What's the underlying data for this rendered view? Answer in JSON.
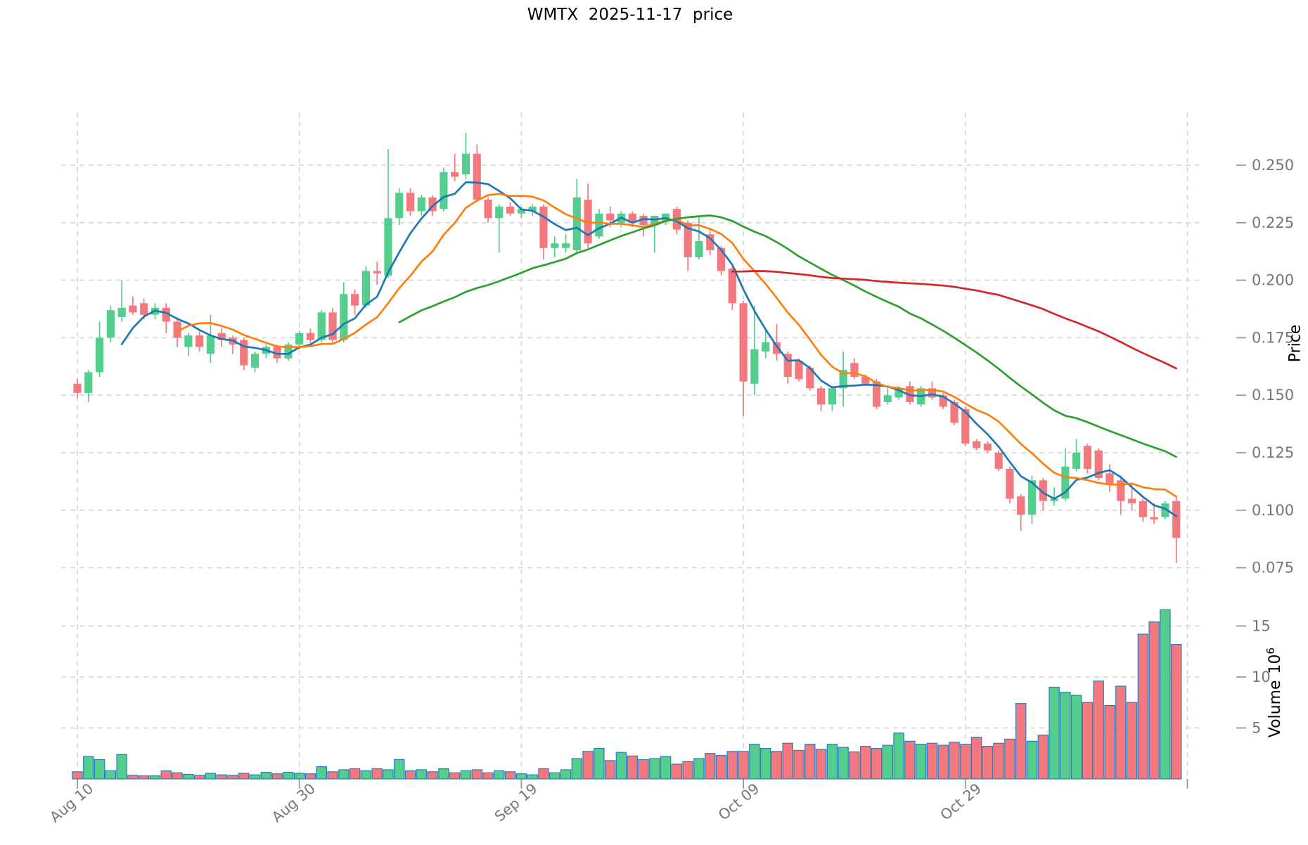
{
  "title": "WMTX  2025-11-17  price",
  "colors": {
    "up": "#54CE8D",
    "down": "#F4797F",
    "volume_edge": "#2B7BBE",
    "grid": "#d9d9d9",
    "tick_text": "#767676",
    "tick_mark": "#9a9a9a"
  },
  "axes": {
    "price": {
      "label": "Price",
      "ticks": [
        "0.250",
        "0.225",
        "0.200",
        "0.175",
        "0.150",
        "0.125",
        "0.100",
        "0.075"
      ]
    },
    "volume": {
      "label": "Volume",
      "exponent": "6",
      "ticks": [
        "15",
        "10",
        "5"
      ]
    },
    "x": {
      "ticks": [
        {
          "index": 0,
          "label": "Aug 10"
        },
        {
          "index": 20,
          "label": "Aug 30"
        },
        {
          "index": 40,
          "label": "Sep 19"
        },
        {
          "index": 60,
          "label": "Oct 09"
        },
        {
          "index": 80,
          "label": "Oct 29"
        },
        {
          "index": 100,
          "label": ""
        }
      ]
    }
  },
  "chart_data": {
    "type": "candlestick",
    "title": "WMTX  2025-11-17  price",
    "x_axis_dates_shown": [
      "Aug 10",
      "Aug 30",
      "Sep 19",
      "Oct 09",
      "Oct 29"
    ],
    "price_axis_range": [
      0.065,
      0.272
    ],
    "volume_axis_range_millions": [
      0,
      17.5
    ],
    "grid": true,
    "legend": false,
    "moving_averages": [
      {
        "window": 5,
        "color": "#1f77b4"
      },
      {
        "window": 10,
        "color": "#ff7f0e"
      },
      {
        "window": 30,
        "color": "#2ca02c"
      },
      {
        "window": 60,
        "color": "#d62728"
      }
    ],
    "dates": [
      "Aug 10",
      "Aug 11",
      "Aug 12",
      "Aug 13",
      "Aug 14",
      "Aug 15",
      "Aug 16",
      "Aug 17",
      "Aug 18",
      "Aug 19",
      "Aug 20",
      "Aug 21",
      "Aug 22",
      "Aug 23",
      "Aug 24",
      "Aug 25",
      "Aug 26",
      "Aug 27",
      "Aug 28",
      "Aug 29",
      "Aug 30",
      "Aug 31",
      "Sep 01",
      "Sep 02",
      "Sep 03",
      "Sep 04",
      "Sep 05",
      "Sep 06",
      "Sep 07",
      "Sep 08",
      "Sep 09",
      "Sep 10",
      "Sep 11",
      "Sep 12",
      "Sep 13",
      "Sep 14",
      "Sep 15",
      "Sep 16",
      "Sep 17",
      "Sep 18",
      "Sep 19",
      "Sep 20",
      "Sep 21",
      "Sep 22",
      "Sep 23",
      "Sep 24",
      "Sep 25",
      "Sep 26",
      "Sep 27",
      "Sep 28",
      "Sep 29",
      "Sep 30",
      "Oct 01",
      "Oct 02",
      "Oct 03",
      "Oct 04",
      "Oct 05",
      "Oct 06",
      "Oct 07",
      "Oct 08",
      "Oct 09",
      "Oct 10",
      "Oct 11",
      "Oct 12",
      "Oct 13",
      "Oct 14",
      "Oct 15",
      "Oct 16",
      "Oct 17",
      "Oct 18",
      "Oct 19",
      "Oct 20",
      "Oct 21",
      "Oct 22",
      "Oct 23",
      "Oct 24",
      "Oct 25",
      "Oct 26",
      "Oct 27",
      "Oct 28",
      "Oct 29",
      "Oct 30",
      "Oct 31",
      "Nov 01",
      "Nov 02",
      "Nov 03",
      "Nov 04",
      "Nov 05",
      "Nov 06",
      "Nov 07",
      "Nov 08",
      "Nov 09",
      "Nov 10",
      "Nov 11",
      "Nov 12",
      "Nov 13",
      "Nov 14",
      "Nov 15",
      "Nov 16",
      "Nov 17"
    ],
    "open": [
      0.155,
      0.151,
      0.16,
      0.175,
      0.184,
      0.189,
      0.19,
      0.185,
      0.188,
      0.182,
      0.171,
      0.176,
      0.168,
      0.177,
      0.175,
      0.174,
      0.162,
      0.168,
      0.171,
      0.166,
      0.172,
      0.177,
      0.174,
      0.186,
      0.174,
      0.194,
      0.189,
      0.204,
      0.202,
      0.227,
      0.238,
      0.23,
      0.236,
      0.231,
      0.247,
      0.246,
      0.255,
      0.235,
      0.227,
      0.232,
      0.229,
      0.23,
      0.232,
      0.214,
      0.214,
      0.213,
      0.235,
      0.219,
      0.229,
      0.225,
      0.229,
      0.228,
      0.224,
      0.226,
      0.231,
      0.225,
      0.21,
      0.22,
      0.214,
      0.205,
      0.19,
      0.155,
      0.169,
      0.173,
      0.168,
      0.165,
      0.162,
      0.153,
      0.146,
      0.153,
      0.164,
      0.158,
      0.156,
      0.147,
      0.149,
      0.154,
      0.146,
      0.153,
      0.15,
      0.147,
      0.144,
      0.13,
      0.129,
      0.125,
      0.118,
      0.106,
      0.098,
      0.113,
      0.104,
      0.105,
      0.118,
      0.128,
      0.126,
      0.116,
      0.113,
      0.105,
      0.104,
      0.097,
      0.097,
      0.104
    ],
    "high": [
      0.157,
      0.161,
      0.182,
      0.189,
      0.2,
      0.193,
      0.192,
      0.19,
      0.19,
      0.184,
      0.177,
      0.178,
      0.185,
      0.179,
      0.176,
      0.175,
      0.169,
      0.172,
      0.172,
      0.173,
      0.178,
      0.179,
      0.187,
      0.188,
      0.199,
      0.196,
      0.206,
      0.208,
      0.257,
      0.24,
      0.24,
      0.237,
      0.237,
      0.249,
      0.255,
      0.264,
      0.259,
      0.236,
      0.233,
      0.234,
      0.232,
      0.233,
      0.233,
      0.219,
      0.22,
      0.244,
      0.242,
      0.231,
      0.232,
      0.23,
      0.23,
      0.229,
      0.228,
      0.229,
      0.232,
      0.226,
      0.228,
      0.222,
      0.215,
      0.206,
      0.191,
      0.189,
      0.179,
      0.181,
      0.169,
      0.166,
      0.163,
      0.154,
      0.154,
      0.169,
      0.166,
      0.159,
      0.157,
      0.153,
      0.154,
      0.156,
      0.154,
      0.156,
      0.151,
      0.148,
      0.145,
      0.131,
      0.13,
      0.126,
      0.119,
      0.107,
      0.115,
      0.114,
      0.11,
      0.127,
      0.131,
      0.129,
      0.127,
      0.12,
      0.115,
      0.111,
      0.105,
      0.103,
      0.104,
      0.106
    ],
    "low": [
      0.149,
      0.147,
      0.158,
      0.173,
      0.182,
      0.185,
      0.183,
      0.183,
      0.177,
      0.171,
      0.167,
      0.169,
      0.164,
      0.171,
      0.168,
      0.161,
      0.16,
      0.166,
      0.164,
      0.165,
      0.17,
      0.171,
      0.173,
      0.172,
      0.173,
      0.185,
      0.188,
      0.198,
      0.201,
      0.224,
      0.228,
      0.228,
      0.228,
      0.23,
      0.243,
      0.244,
      0.234,
      0.225,
      0.212,
      0.228,
      0.227,
      0.228,
      0.209,
      0.21,
      0.212,
      0.212,
      0.214,
      0.218,
      0.223,
      0.223,
      0.223,
      0.219,
      0.212,
      0.224,
      0.22,
      0.204,
      0.209,
      0.211,
      0.202,
      0.187,
      0.141,
      0.15,
      0.166,
      0.165,
      0.155,
      0.156,
      0.152,
      0.143,
      0.143,
      0.145,
      0.157,
      0.154,
      0.144,
      0.146,
      0.148,
      0.146,
      0.145,
      0.148,
      0.144,
      0.137,
      0.128,
      0.126,
      0.125,
      0.117,
      0.103,
      0.091,
      0.094,
      0.1,
      0.102,
      0.104,
      0.117,
      0.116,
      0.113,
      0.108,
      0.098,
      0.1,
      0.095,
      0.094,
      0.096,
      0.077
    ],
    "close": [
      0.151,
      0.16,
      0.175,
      0.187,
      0.188,
      0.186,
      0.185,
      0.188,
      0.182,
      0.175,
      0.176,
      0.171,
      0.176,
      0.174,
      0.172,
      0.163,
      0.168,
      0.171,
      0.166,
      0.172,
      0.177,
      0.174,
      0.186,
      0.174,
      0.194,
      0.189,
      0.204,
      0.203,
      0.227,
      0.238,
      0.23,
      0.236,
      0.23,
      0.247,
      0.245,
      0.255,
      0.235,
      0.227,
      0.232,
      0.229,
      0.231,
      0.232,
      0.214,
      0.216,
      0.216,
      0.236,
      0.216,
      0.229,
      0.226,
      0.229,
      0.225,
      0.224,
      0.228,
      0.229,
      0.222,
      0.21,
      0.217,
      0.213,
      0.204,
      0.19,
      0.156,
      0.17,
      0.173,
      0.168,
      0.158,
      0.157,
      0.153,
      0.146,
      0.153,
      0.161,
      0.158,
      0.155,
      0.145,
      0.15,
      0.153,
      0.147,
      0.153,
      0.149,
      0.145,
      0.138,
      0.129,
      0.127,
      0.126,
      0.118,
      0.105,
      0.098,
      0.113,
      0.104,
      0.105,
      0.119,
      0.125,
      0.118,
      0.114,
      0.111,
      0.104,
      0.103,
      0.097,
      0.096,
      0.103,
      0.088
    ],
    "volume_millions": [
      0.7,
      2.2,
      1.9,
      0.8,
      2.4,
      0.35,
      0.3,
      0.3,
      0.8,
      0.6,
      0.45,
      0.35,
      0.55,
      0.4,
      0.35,
      0.55,
      0.4,
      0.65,
      0.5,
      0.65,
      0.55,
      0.5,
      1.2,
      0.7,
      0.9,
      1.0,
      0.8,
      1.0,
      0.9,
      1.9,
      0.8,
      0.9,
      0.7,
      1.0,
      0.6,
      0.8,
      0.9,
      0.6,
      0.8,
      0.7,
      0.5,
      0.4,
      1.0,
      0.6,
      0.9,
      2.0,
      2.7,
      3.0,
      1.8,
      2.6,
      2.25,
      1.9,
      2.0,
      2.2,
      1.45,
      1.7,
      2.0,
      2.5,
      2.3,
      2.7,
      2.7,
      3.4,
      3.0,
      2.7,
      3.5,
      2.8,
      3.4,
      2.9,
      3.4,
      3.1,
      2.65,
      3.2,
      3.0,
      3.3,
      4.5,
      3.7,
      3.4,
      3.5,
      3.3,
      3.6,
      3.4,
      4.1,
      3.2,
      3.5,
      3.9,
      7.4,
      3.7,
      4.3,
      9.0,
      8.5,
      8.2,
      7.5,
      9.6,
      7.2,
      9.1,
      7.5,
      14.2,
      15.4,
      16.6,
      13.2
    ]
  }
}
